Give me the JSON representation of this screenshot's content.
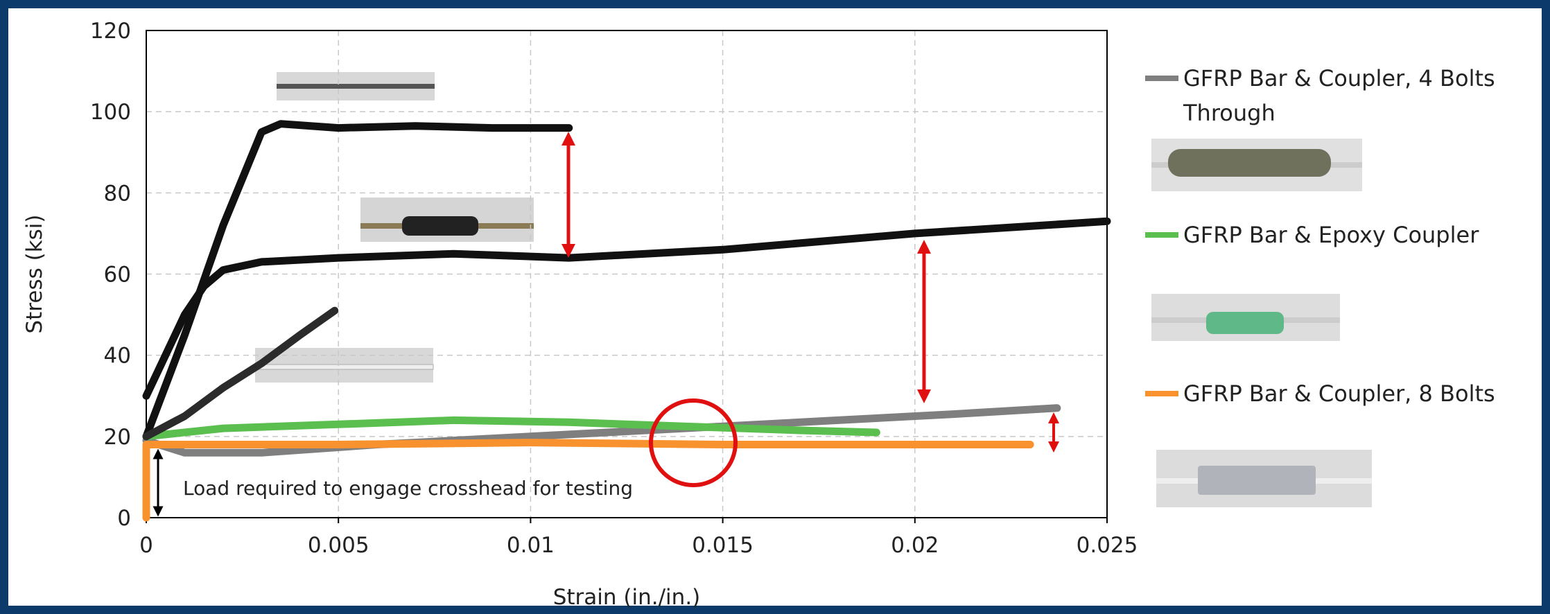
{
  "chart_data": {
    "type": "line",
    "x_label": "Strain (in./in.)",
    "y_label": "Stress (ksi)",
    "annotation": "Load required to engage crosshead for testing",
    "xlim": [
      0,
      0.025
    ],
    "xticks": [
      0,
      0.005,
      0.01,
      0.015,
      0.02,
      0.025
    ],
    "ylim": [
      0,
      120
    ],
    "yticks": [
      0,
      20,
      40,
      60,
      80,
      100,
      120
    ],
    "grid": true,
    "series": [
      {
        "name": "GFRP Bar & Coupler, 4 Bolts Through",
        "color": "#7f7f7f",
        "x": [
          0,
          0.001,
          0.003,
          0.006,
          0.01,
          0.014,
          0.018,
          0.021,
          0.0237
        ],
        "values": [
          19,
          16,
          16,
          18,
          20,
          22,
          24,
          25.5,
          27
        ]
      },
      {
        "name": "GFRP Bar & Epoxy Coupler",
        "color": "#5bbf4f",
        "x": [
          0,
          0.002,
          0.005,
          0.008,
          0.011,
          0.014,
          0.017,
          0.019
        ],
        "values": [
          20,
          22,
          23,
          24,
          23.5,
          22.5,
          21.5,
          21
        ]
      },
      {
        "name": "GFRP Bar & Coupler, 8 Bolts",
        "color": "#f7922e",
        "x": [
          0,
          0,
          0.002,
          0.005,
          0.01,
          0.015,
          0.02,
          0.023
        ],
        "values": [
          0,
          18,
          18,
          18,
          18.5,
          18,
          18,
          18
        ]
      },
      {
        "color": "#111111",
        "x": [
          0,
          0.001,
          0.002,
          0.003,
          0.0035,
          0.005,
          0.007,
          0.009,
          0.011
        ],
        "values": [
          20,
          45,
          72,
          95,
          97,
          96,
          96.5,
          96,
          96
        ]
      },
      {
        "color": "#111111",
        "x": [
          0,
          0.0005,
          0.001,
          0.0015,
          0.002,
          0.003,
          0.005,
          0.008,
          0.011,
          0.015,
          0.02,
          0.025
        ],
        "values": [
          30,
          40,
          50,
          57,
          61,
          63,
          64,
          65,
          64,
          66,
          70,
          73
        ]
      },
      {
        "color": "#2b2b2b",
        "x": [
          0,
          0.001,
          0.002,
          0.003,
          0.004,
          0.0049
        ],
        "values": [
          20,
          25,
          32,
          38,
          45,
          51
        ]
      }
    ]
  }
}
